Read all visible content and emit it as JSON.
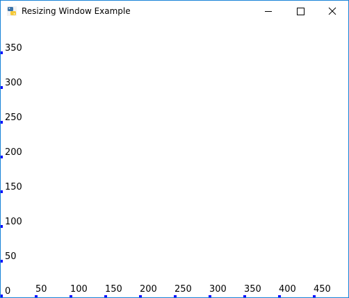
{
  "window": {
    "title": "Resizing Window Example",
    "border_color": "#1883d7",
    "app_icon": "python-icon",
    "controls": {
      "minimize_icon": "minimize-icon",
      "maximize_icon": "maximize-icon",
      "close_icon": "close-icon"
    }
  },
  "canvas": {
    "marker_color": "#0000ff",
    "y_axis_labels": [
      "350",
      "300",
      "250",
      "200",
      "150",
      "100",
      "50",
      "0"
    ],
    "y_axis_values": [
      350,
      300,
      250,
      200,
      150,
      100,
      50,
      0
    ],
    "x_axis_labels": [
      "50",
      "100",
      "150",
      "200",
      "250",
      "300",
      "350",
      "400",
      "450"
    ],
    "x_axis_values": [
      50,
      100,
      150,
      200,
      250,
      300,
      350,
      400,
      450
    ]
  }
}
